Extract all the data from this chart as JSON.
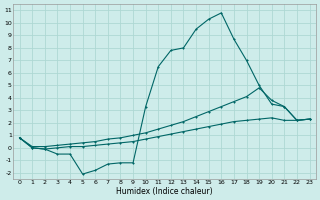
{
  "xlabel": "Humidex (Indice chaleur)",
  "background_color": "#ceecea",
  "grid_color": "#aed8d4",
  "line_color": "#006666",
  "xlim": [
    -0.5,
    23.5
  ],
  "ylim": [
    -2.5,
    11.5
  ],
  "xticks": [
    0,
    1,
    2,
    3,
    4,
    5,
    6,
    7,
    8,
    9,
    10,
    11,
    12,
    13,
    14,
    15,
    16,
    17,
    18,
    19,
    20,
    21,
    22,
    23
  ],
  "yticks": [
    -2,
    -1,
    0,
    1,
    2,
    3,
    4,
    5,
    6,
    7,
    8,
    9,
    10,
    11
  ],
  "series1_x": [
    0,
    1,
    2,
    3,
    4,
    5,
    6,
    7,
    8,
    9,
    10,
    11,
    12,
    13,
    14,
    15,
    16,
    17,
    18,
    19,
    20,
    21,
    22,
    23
  ],
  "series1_y": [
    0.8,
    0.0,
    -0.1,
    -0.5,
    -0.5,
    -2.1,
    -1.8,
    -1.3,
    -1.2,
    -1.2,
    3.3,
    6.5,
    7.8,
    8.0,
    9.5,
    10.3,
    10.8,
    8.7,
    7.0,
    5.0,
    3.5,
    3.3,
    2.2,
    2.3
  ],
  "series2_x": [
    0,
    1,
    2,
    3,
    4,
    5,
    6,
    7,
    8,
    9,
    10,
    11,
    12,
    13,
    14,
    15,
    16,
    17,
    18,
    19,
    20,
    21,
    22,
    23
  ],
  "series2_y": [
    0.8,
    0.1,
    0.1,
    0.2,
    0.3,
    0.4,
    0.5,
    0.7,
    0.8,
    1.0,
    1.2,
    1.5,
    1.8,
    2.1,
    2.5,
    2.9,
    3.3,
    3.7,
    4.1,
    4.8,
    3.8,
    3.3,
    2.2,
    2.3
  ],
  "series3_x": [
    0,
    1,
    2,
    3,
    4,
    5,
    6,
    7,
    8,
    9,
    10,
    11,
    12,
    13,
    14,
    15,
    16,
    17,
    18,
    19,
    20,
    21,
    22,
    23
  ],
  "series3_y": [
    0.8,
    0.0,
    -0.1,
    0.0,
    0.1,
    0.1,
    0.2,
    0.3,
    0.4,
    0.5,
    0.7,
    0.9,
    1.1,
    1.3,
    1.5,
    1.7,
    1.9,
    2.1,
    2.2,
    2.3,
    2.4,
    2.2,
    2.2,
    2.3
  ]
}
